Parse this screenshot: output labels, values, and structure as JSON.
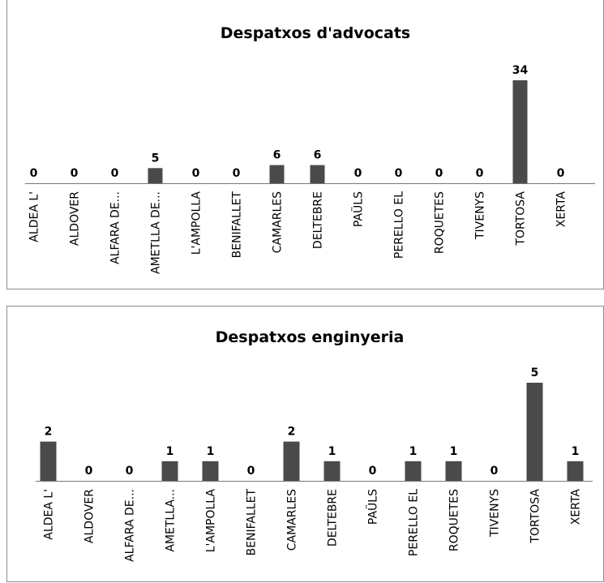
{
  "chart_data": [
    {
      "type": "bar",
      "title": "Despatxos d'advocats",
      "categories": [
        "ALDEA L'",
        "ALDOVER",
        "ALFARA DE...",
        "AMETLLA DE...",
        "L'AMPOLLA",
        "BENIFALLET",
        "CAMARLES",
        "DELTEBRE",
        "PAÜLS",
        "PERELLO EL",
        "ROQUETES",
        "TIVENYS",
        "TORTOSA",
        "XERTA"
      ],
      "values": [
        0,
        0,
        0,
        5,
        0,
        0,
        6,
        6,
        0,
        0,
        0,
        0,
        34,
        0
      ],
      "xlabel": "",
      "ylabel": "",
      "ylim": [
        0,
        34
      ],
      "grid": false,
      "legend": "none",
      "bar_color": "#4a4a4a"
    },
    {
      "type": "bar",
      "title": "Despatxos enginyeria",
      "categories": [
        "ALDEA L'",
        "ALDOVER",
        "ALFARA DE...",
        "AMETLLA...",
        "L'AMPOLLA",
        "BENIFALLET",
        "CAMARLES",
        "DELTEBRE",
        "PAÜLS",
        "PERELLO EL",
        "ROQUETES",
        "TIVENYS",
        "TORTOSA",
        "XERTA"
      ],
      "values": [
        2,
        0,
        0,
        1,
        1,
        0,
        2,
        1,
        0,
        1,
        1,
        0,
        5,
        1
      ],
      "xlabel": "",
      "ylabel": "",
      "ylim": [
        0,
        5
      ],
      "grid": false,
      "legend": "none",
      "bar_color": "#4a4a4a"
    }
  ]
}
